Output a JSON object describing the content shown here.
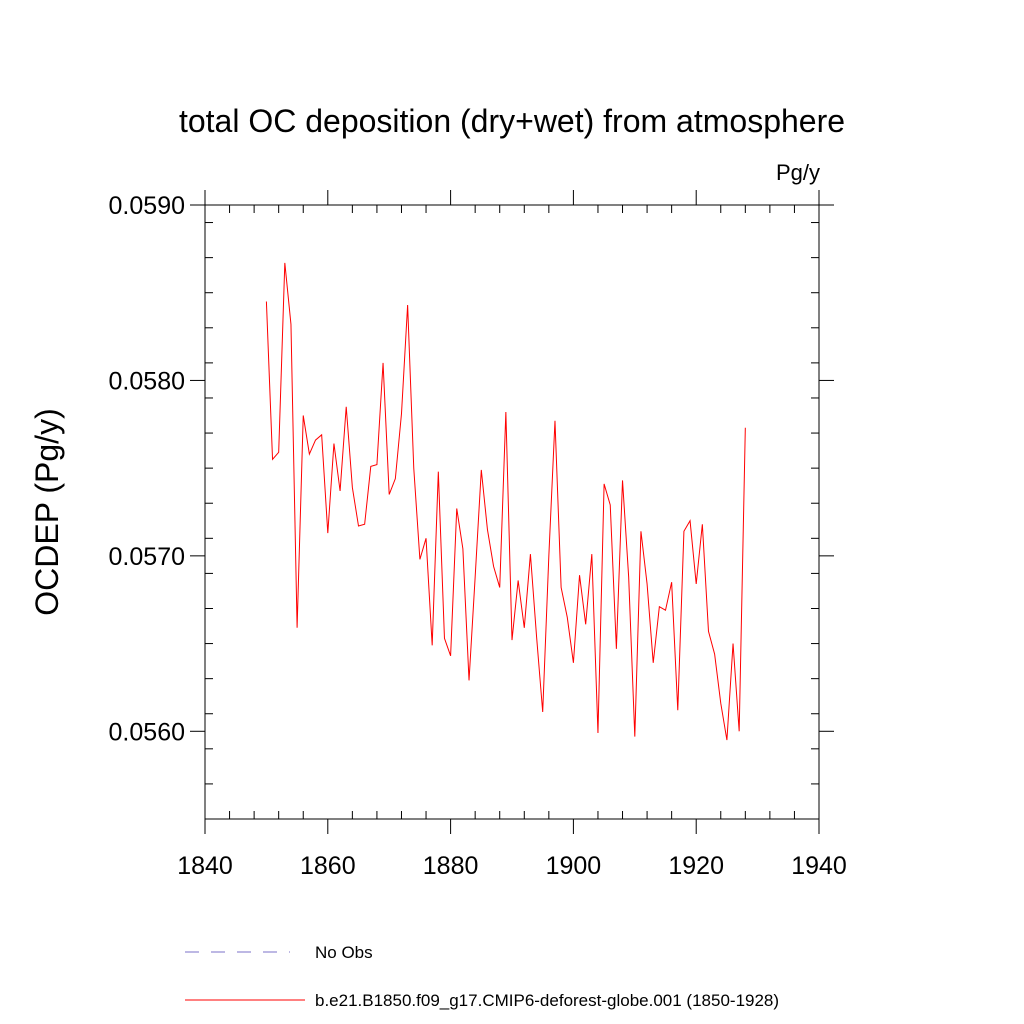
{
  "colors": {
    "series": "#ff0000",
    "obs": "#7b72c8",
    "axis": "#000000",
    "background": "#ffffff"
  },
  "chart_data": {
    "type": "line",
    "title": "total OC deposition (dry+wet) from atmosphere",
    "units": "Pg/y",
    "xlabel": "",
    "ylabel": "OCDEP  (Pg/y)",
    "xlim": [
      1840,
      1940
    ],
    "ylim": [
      0.0555,
      0.059
    ],
    "xticks": [
      1840,
      1860,
      1880,
      1900,
      1920,
      1940
    ],
    "xtick_labels": [
      "1840",
      "1860",
      "1880",
      "1900",
      "1920",
      "1940"
    ],
    "yticks": [
      0.056,
      0.057,
      0.058,
      0.059
    ],
    "ytick_labels": [
      "0.0560",
      "0.0570",
      "0.0580",
      "0.0590"
    ],
    "x_minor_step": 4,
    "y_minor_step": 0.0002,
    "grid": false,
    "legend_position": "bottom",
    "series": [
      {
        "name": "b.e21.B1850.f09_g17.CMIP6-deforest-globe.001 (1850-1928)",
        "style": "solid",
        "x": [
          1850,
          1851,
          1852,
          1853,
          1854,
          1855,
          1856,
          1857,
          1858,
          1859,
          1860,
          1861,
          1862,
          1863,
          1864,
          1865,
          1866,
          1867,
          1868,
          1869,
          1870,
          1871,
          1872,
          1873,
          1874,
          1875,
          1876,
          1877,
          1878,
          1879,
          1880,
          1881,
          1882,
          1883,
          1884,
          1885,
          1886,
          1887,
          1888,
          1889,
          1890,
          1891,
          1892,
          1893,
          1894,
          1895,
          1896,
          1897,
          1898,
          1899,
          1900,
          1901,
          1902,
          1903,
          1904,
          1905,
          1906,
          1907,
          1908,
          1909,
          1910,
          1911,
          1912,
          1913,
          1914,
          1915,
          1916,
          1917,
          1918,
          1919,
          1920,
          1921,
          1922,
          1923,
          1924,
          1925,
          1926,
          1927,
          1928
        ],
        "values": [
          0.05845,
          0.05755,
          0.05759,
          0.05867,
          0.05832,
          0.05659,
          0.0578,
          0.05758,
          0.05766,
          0.05769,
          0.05713,
          0.05764,
          0.05737,
          0.05785,
          0.05739,
          0.05717,
          0.05718,
          0.05751,
          0.05752,
          0.0581,
          0.05735,
          0.05744,
          0.05781,
          0.05843,
          0.0575,
          0.05698,
          0.0571,
          0.05649,
          0.05748,
          0.05653,
          0.05643,
          0.05727,
          0.05704,
          0.05629,
          0.05688,
          0.05749,
          0.05715,
          0.05694,
          0.05682,
          0.05782,
          0.05652,
          0.05686,
          0.05659,
          0.05701,
          0.05654,
          0.05611,
          0.057,
          0.05777,
          0.05682,
          0.05665,
          0.05639,
          0.05689,
          0.05661,
          0.05701,
          0.05599,
          0.05741,
          0.05729,
          0.05647,
          0.05743,
          0.05688,
          0.05597,
          0.05714,
          0.05684,
          0.05639,
          0.05671,
          0.05669,
          0.05685,
          0.05612,
          0.05714,
          0.0572,
          0.05684,
          0.05718,
          0.05657,
          0.05644,
          0.05616,
          0.05595,
          0.0565,
          0.056,
          0.05773
        ]
      },
      {
        "name": "No Obs",
        "style": "dashed",
        "x": [],
        "values": []
      }
    ]
  }
}
